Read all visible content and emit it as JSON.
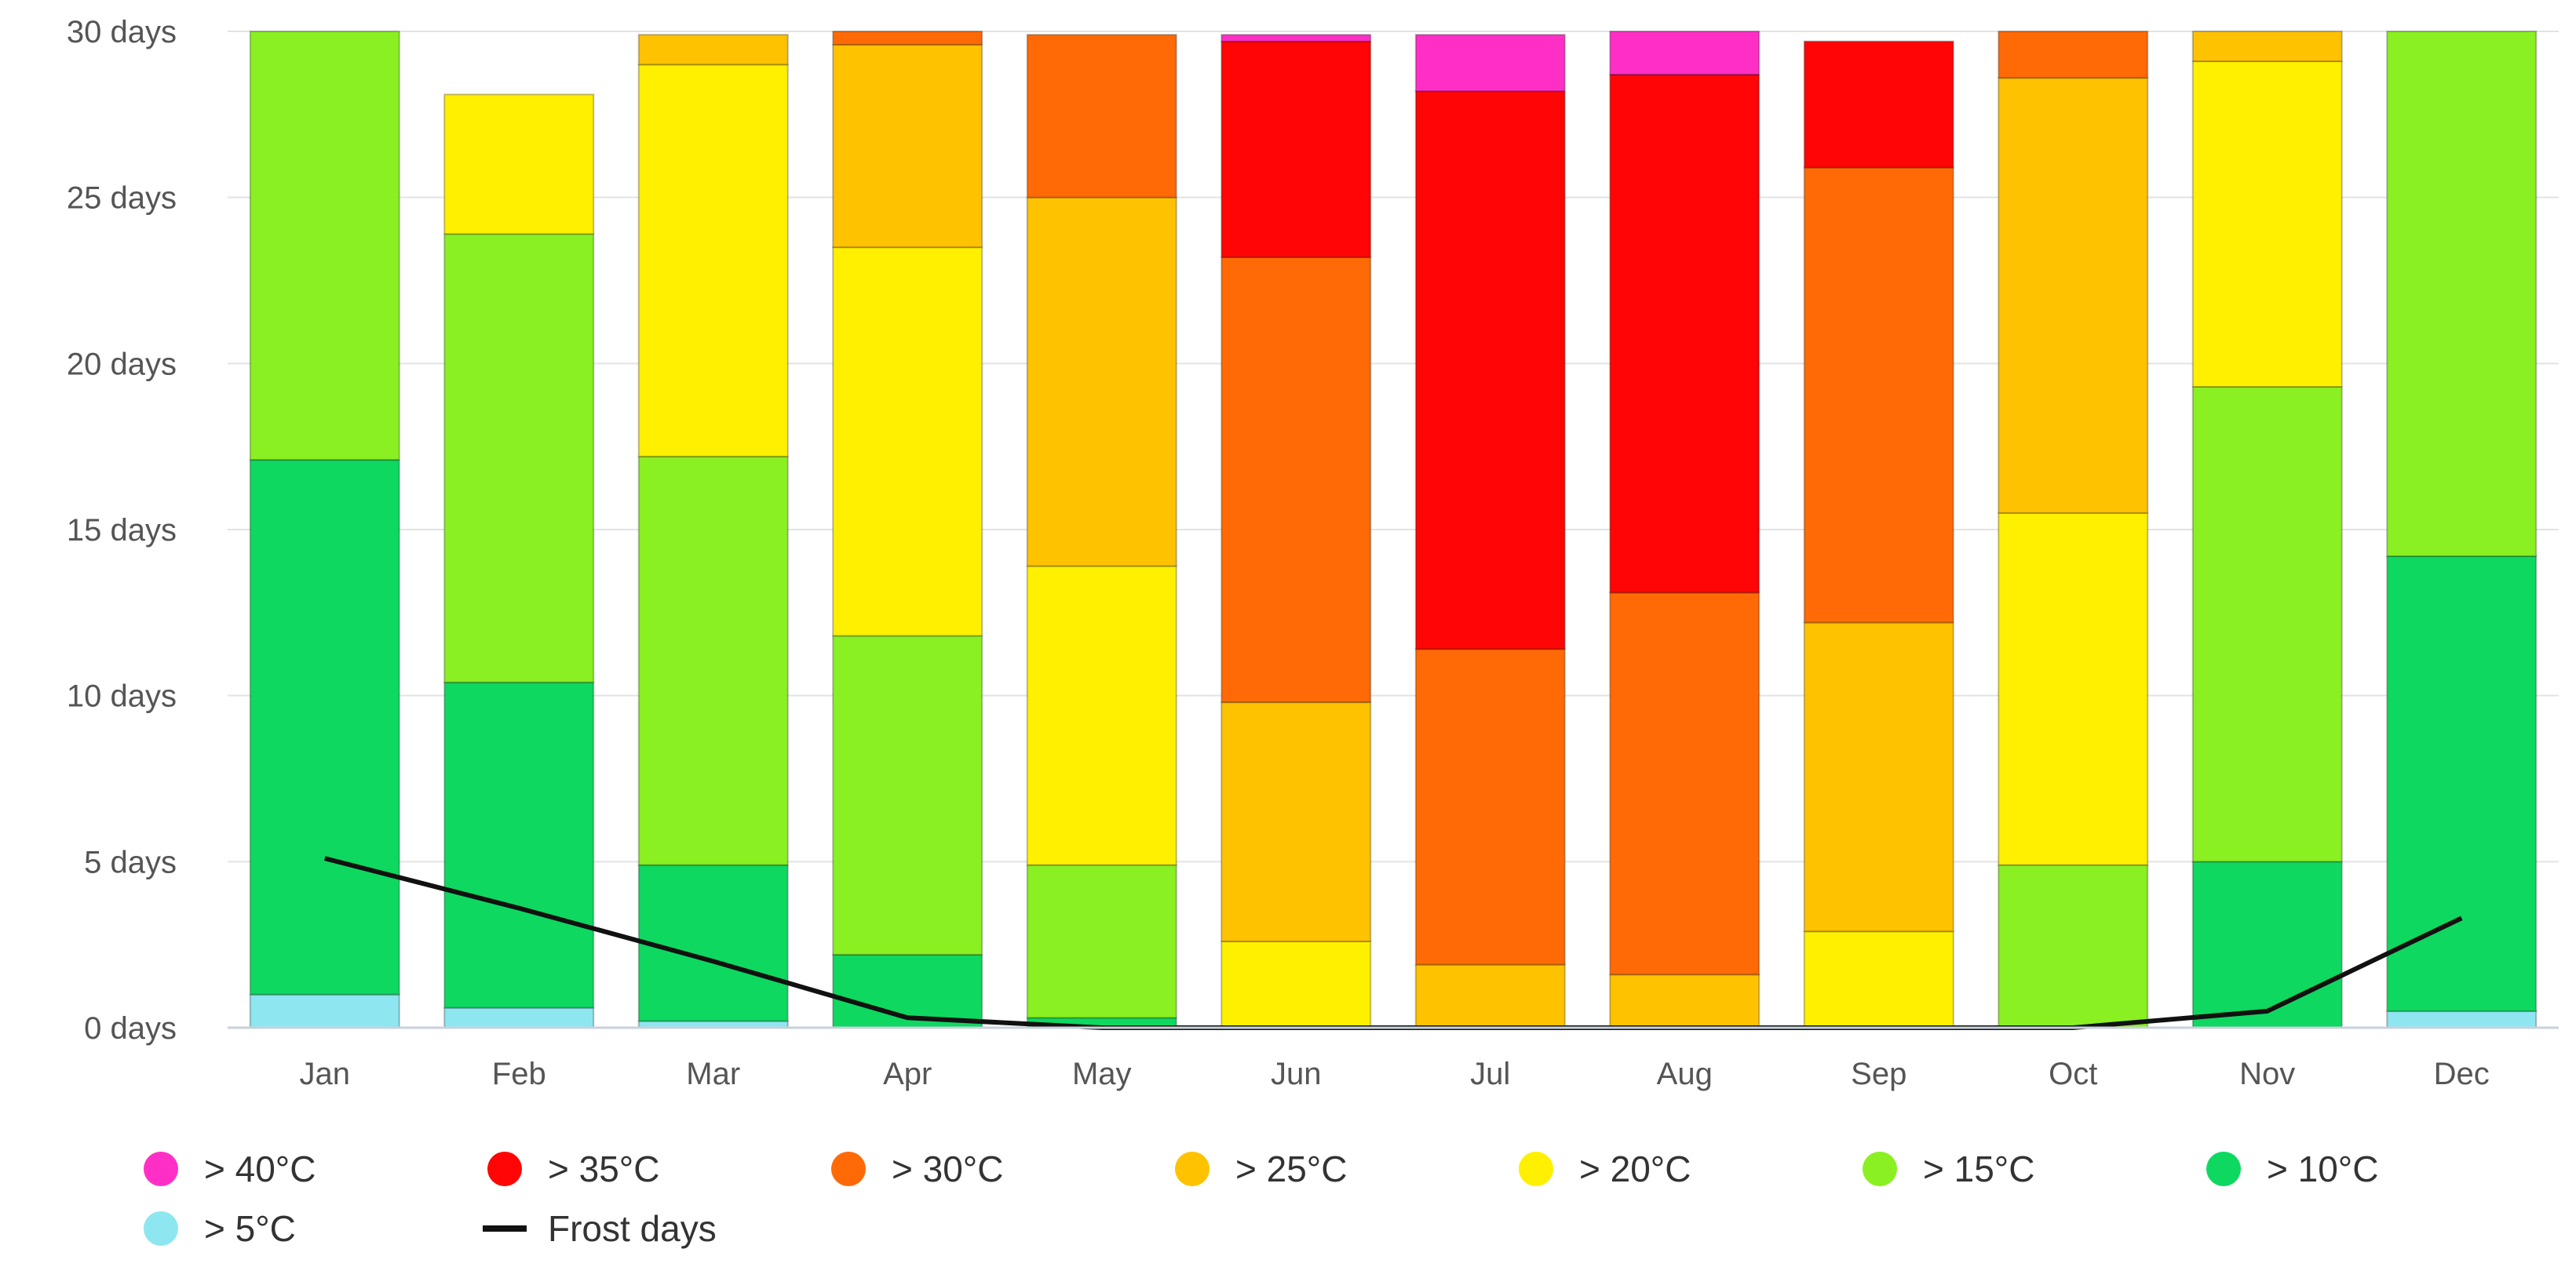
{
  "chart_data": {
    "type": "bar",
    "stacked": true,
    "title": "",
    "xlabel": "",
    "ylabel": "",
    "ylim": [
      0,
      30
    ],
    "y_ticks": [
      0,
      5,
      10,
      15,
      20,
      25,
      30
    ],
    "y_tick_labels": [
      "0 days",
      "5 days",
      "10 days",
      "15 days",
      "20 days",
      "25 days",
      "30 days"
    ],
    "categories": [
      "Jan",
      "Feb",
      "Mar",
      "Apr",
      "May",
      "Jun",
      "Jul",
      "Aug",
      "Sep",
      "Oct",
      "Nov",
      "Dec"
    ],
    "grid": true,
    "legend_position": "bottom",
    "series": [
      {
        "name": "> 5°C",
        "color": "#8ee6f0",
        "values": [
          1.0,
          0.6,
          0.2,
          0,
          0,
          0,
          0,
          0,
          0,
          0,
          0,
          0.5
        ]
      },
      {
        "name": "> 10°C",
        "color": "#0ed860",
        "values": [
          16.1,
          9.8,
          4.7,
          2.2,
          0.3,
          0,
          0,
          0,
          0,
          0,
          5.0,
          13.7
        ]
      },
      {
        "name": "> 15°C",
        "color": "#8af022",
        "values": [
          12.9,
          13.5,
          12.3,
          9.6,
          4.6,
          0,
          0,
          0,
          0,
          4.9,
          14.3,
          15.8
        ]
      },
      {
        "name": "> 20°C",
        "color": "#fff000",
        "values": [
          0,
          4.2,
          11.8,
          11.7,
          9.0,
          2.6,
          0,
          0,
          2.9,
          10.6,
          9.8,
          0
        ]
      },
      {
        "name": "> 25°C",
        "color": "#ffc200",
        "values": [
          0,
          0,
          0.9,
          6.1,
          11.1,
          7.2,
          1.9,
          1.6,
          9.3,
          13.1,
          0.9,
          0
        ]
      },
      {
        "name": "> 30°C",
        "color": "#ff6a06",
        "values": [
          0,
          0,
          0,
          0.4,
          4.9,
          13.4,
          9.5,
          11.5,
          13.7,
          1.4,
          0,
          0
        ]
      },
      {
        "name": "> 35°C",
        "color": "#ff0505",
        "values": [
          0,
          0,
          0,
          0,
          0,
          6.5,
          16.8,
          15.6,
          3.8,
          0,
          0,
          0
        ]
      },
      {
        "name": "> 40°C",
        "color": "#ff2fc6",
        "values": [
          0,
          0,
          0,
          0,
          0,
          0.2,
          1.7,
          1.3,
          0,
          0,
          0,
          0
        ]
      }
    ],
    "line_series": [
      {
        "name": "Frost days",
        "color": "#111111",
        "values": [
          5.1,
          3.6,
          2.0,
          0.3,
          0,
          0,
          0,
          0,
          0,
          0,
          0.5,
          3.3
        ]
      }
    ]
  }
}
